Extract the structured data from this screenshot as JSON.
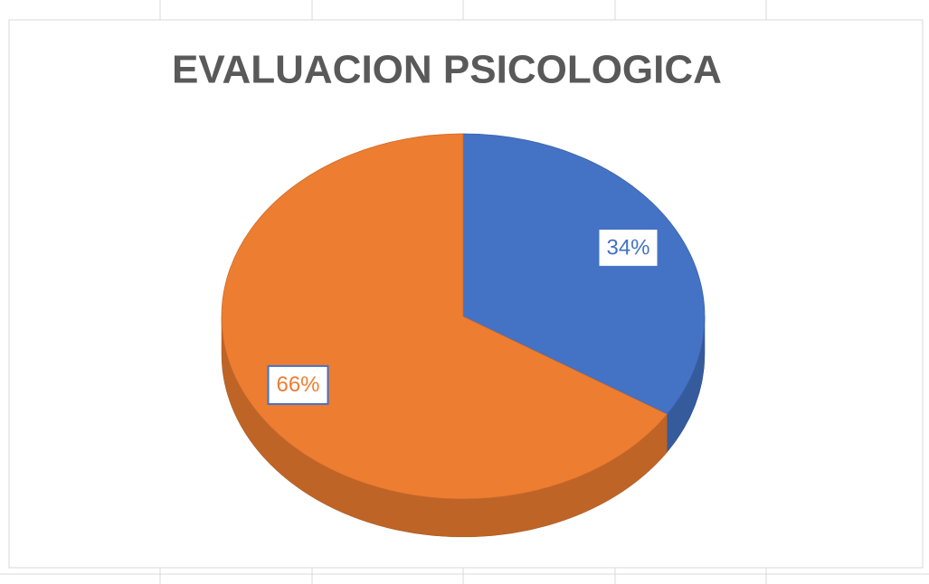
{
  "chart_data": {
    "type": "pie",
    "title": "EVALUACION PSICOLOGICA",
    "values": [
      34,
      66
    ],
    "value_labels": [
      "34%",
      "66%"
    ],
    "colors": [
      "#4472c4",
      "#ed7d31"
    ]
  }
}
